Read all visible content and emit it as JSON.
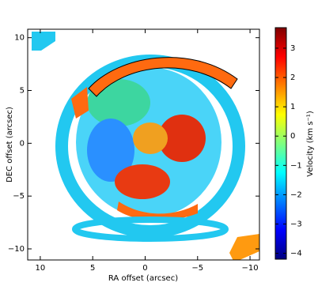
{
  "chart_data": {
    "type": "image",
    "xlabel": "RA offset (arcsec)",
    "ylabel": "DEC offset (arcsec)",
    "xlim": [
      11.2,
      -10.9
    ],
    "ylim": [
      -11.05,
      10.8
    ],
    "xticks": [
      10,
      5,
      0,
      {
        "value": -5,
        "label": "−5"
      },
      {
        "value": -10,
        "label": "−10"
      }
    ],
    "yticks": [
      {
        "value": -10,
        "label": "−10"
      },
      {
        "value": -5,
        "label": "−5"
      },
      0,
      5,
      10
    ],
    "colorbar": {
      "label": "Velocity (km s⁻¹)",
      "colormap": "jet",
      "lim": [
        -4.2,
        3.7
      ],
      "ticks": [
        {
          "value": -4,
          "label": "−4"
        },
        {
          "value": -3,
          "label": "−3"
        },
        {
          "value": -2,
          "label": "−2"
        },
        {
          "value": -1,
          "label": "−1"
        },
        0,
        1,
        2,
        3
      ]
    }
  }
}
